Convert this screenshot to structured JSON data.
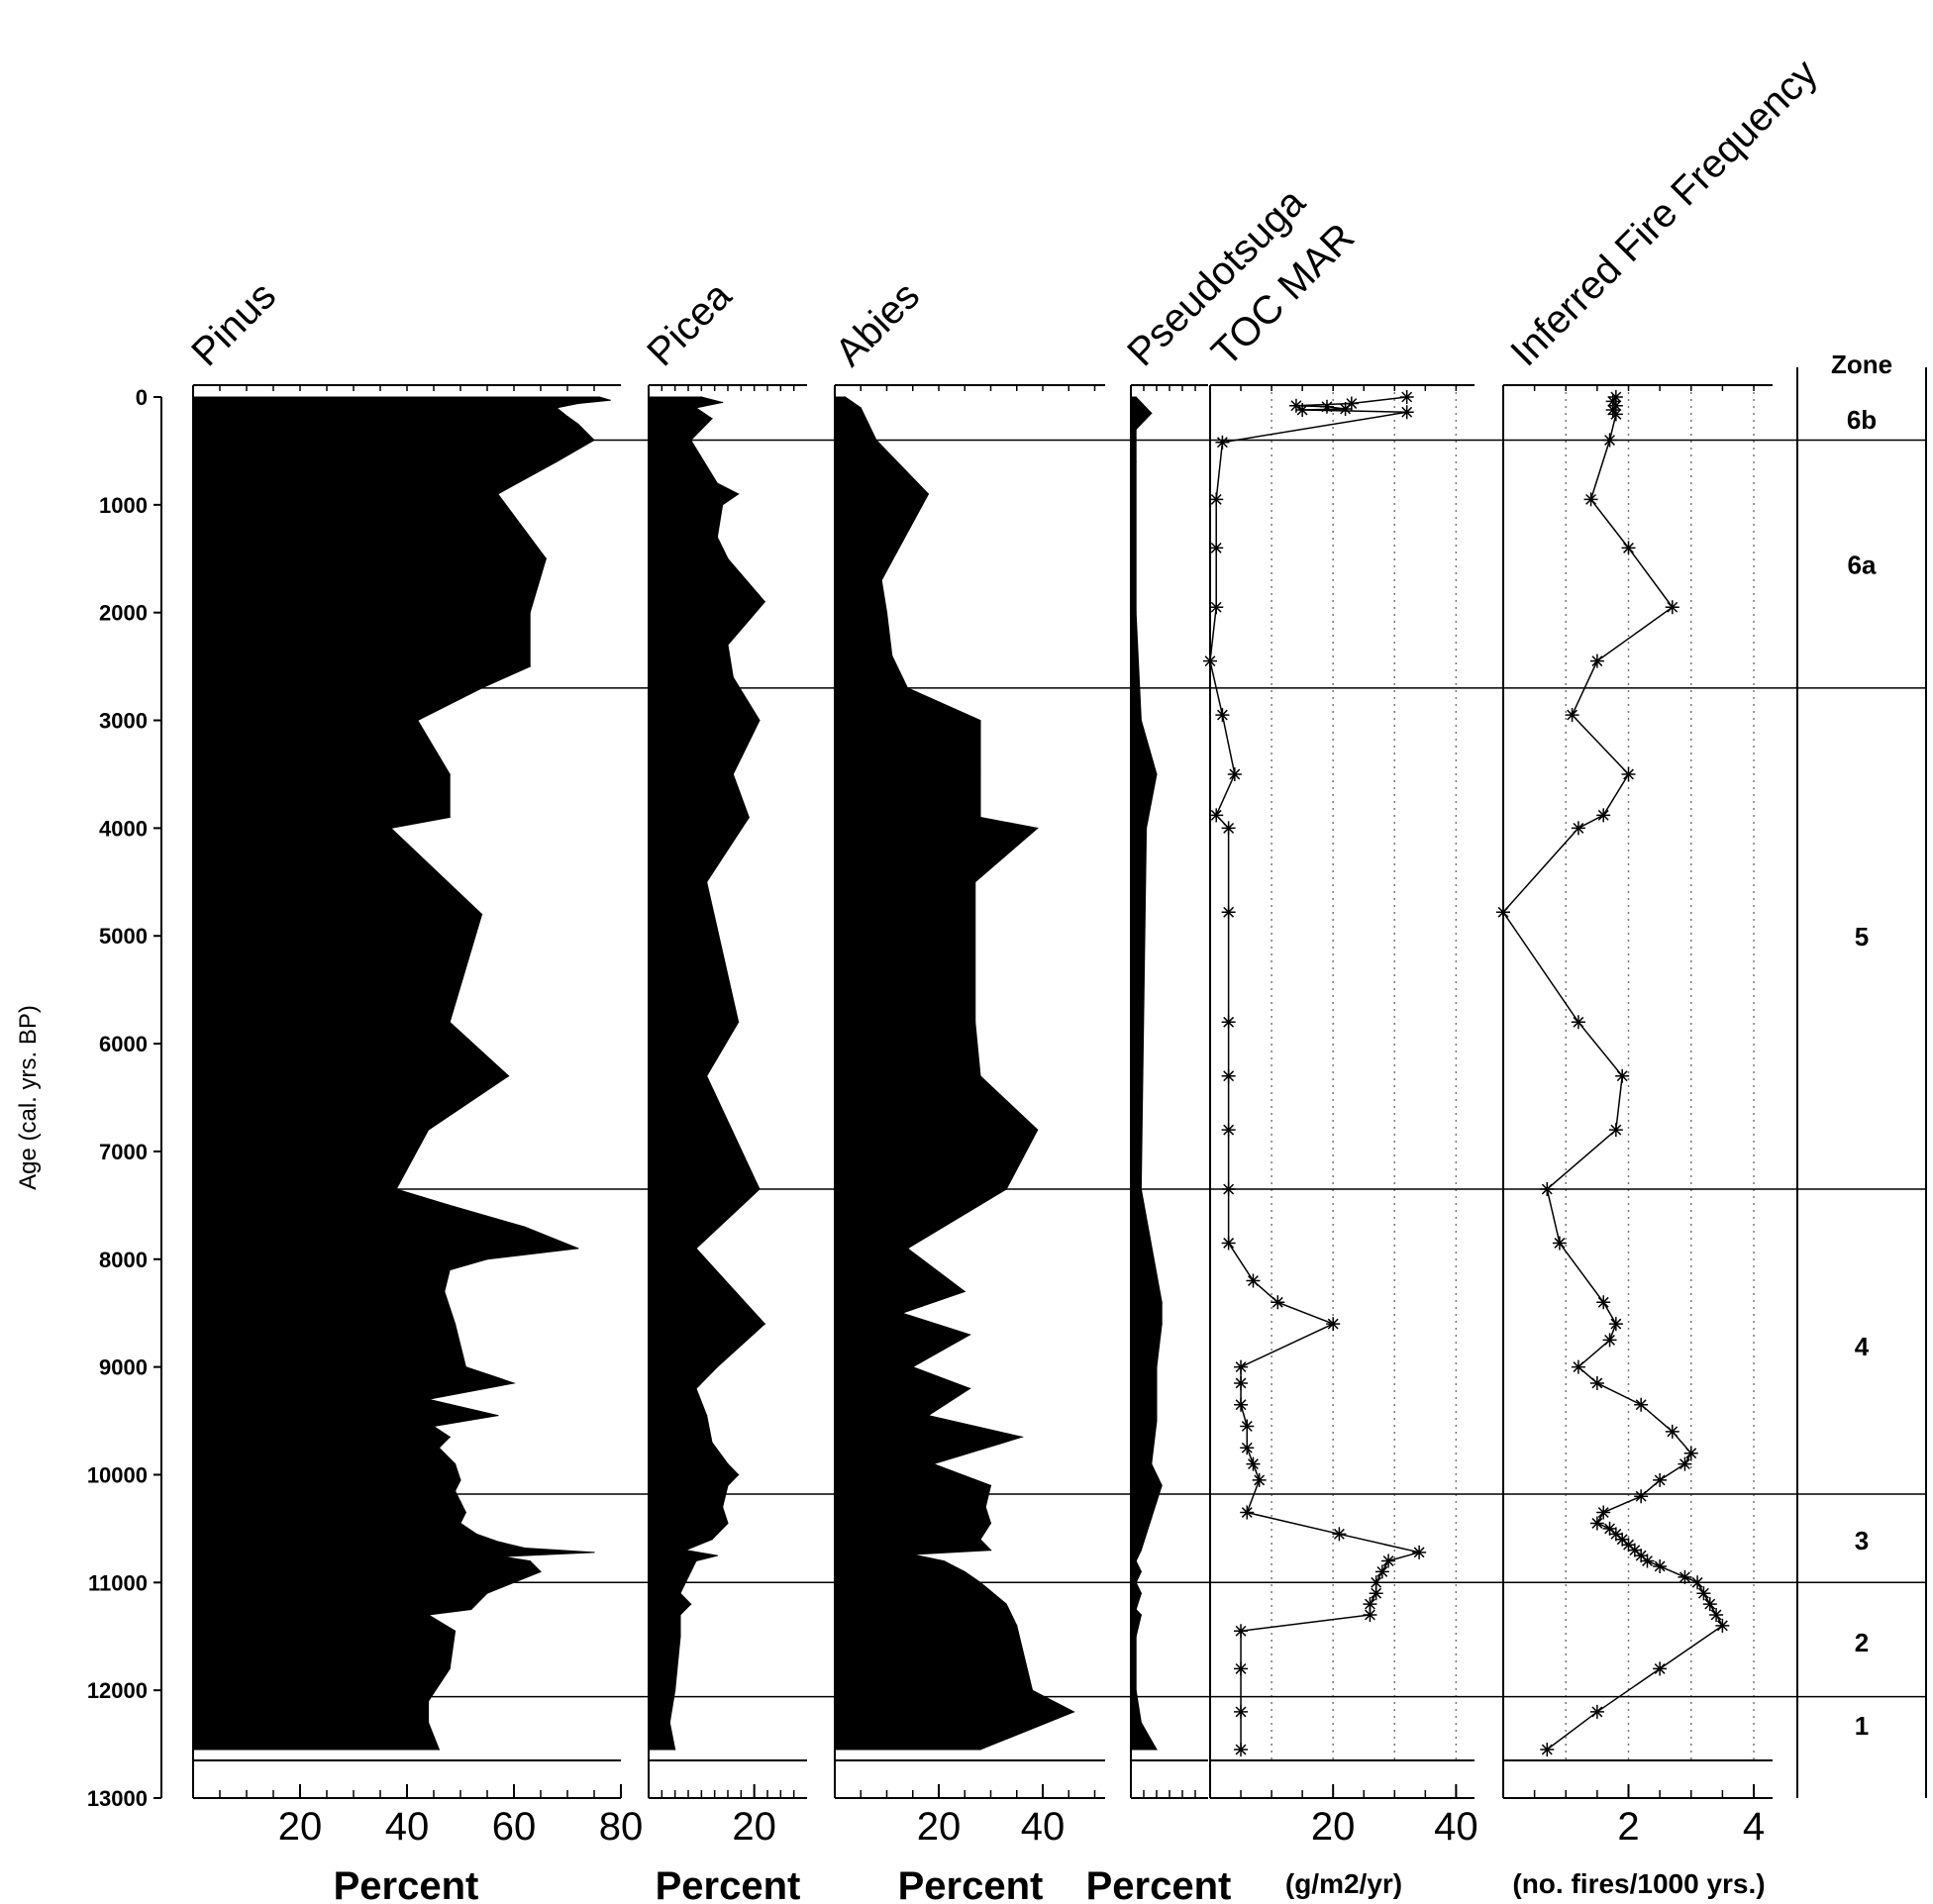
{
  "y_axis": {
    "label": "Age (cal. yrs. BP)",
    "ticks": [
      "0",
      "1000",
      "2000",
      "3000",
      "4000",
      "5000",
      "6000",
      "7000",
      "8000",
      "9000",
      "10000",
      "11000",
      "12000",
      "13000"
    ]
  },
  "zones": {
    "header": "Zone",
    "boundaries": [
      400,
      2700,
      7350,
      10180,
      11000,
      12060
    ],
    "labels": [
      {
        "label": "6b",
        "age": 200
      },
      {
        "label": "6a",
        "age": 1550
      },
      {
        "label": "5",
        "age": 5000
      },
      {
        "label": "4",
        "age": 8800
      },
      {
        "label": "3",
        "age": 10600
      },
      {
        "label": "2",
        "age": 11550
      },
      {
        "label": "1",
        "age": 12320
      }
    ]
  },
  "chart_data": [
    {
      "type": "area",
      "title": "Pinus",
      "xlabel": "Percent",
      "xlim": [
        0,
        80
      ],
      "xtick_labels": [
        "20",
        "40",
        "60",
        "80"
      ],
      "xtick_values": [
        20,
        40,
        60,
        80
      ],
      "depth": [
        0,
        30,
        60,
        100,
        180,
        250,
        400,
        600,
        900,
        1500,
        2000,
        2500,
        2700,
        3000,
        3500,
        3900,
        4000,
        4800,
        5800,
        6300,
        6800,
        7350,
        7500,
        7700,
        7900,
        8000,
        8100,
        8300,
        8600,
        9000,
        9150,
        9300,
        9450,
        9550,
        9650,
        9750,
        9900,
        10050,
        10150,
        10250,
        10350,
        10450,
        10550,
        10620,
        10680,
        10720,
        10760,
        10800,
        10900,
        11000,
        11100,
        11250,
        11300,
        11450,
        11800,
        12100,
        12300,
        12550
      ],
      "values": [
        76,
        78,
        72,
        68,
        70,
        72,
        75,
        68,
        57,
        66,
        63,
        63,
        54,
        42,
        48,
        48,
        37,
        54,
        48,
        59,
        44,
        38,
        48,
        62,
        72,
        55,
        48,
        47,
        49,
        51,
        60,
        44,
        57,
        45,
        48,
        46,
        49,
        50,
        49,
        50,
        51,
        50,
        53,
        57,
        62,
        75,
        58,
        63,
        65,
        60,
        55,
        52,
        44,
        49,
        48,
        44,
        44,
        46
      ]
    },
    {
      "type": "area",
      "title": "Picea",
      "xlabel": "Percent",
      "xlim": [
        0,
        30
      ],
      "xtick_labels": [
        "20"
      ],
      "xtick_values": [
        20
      ],
      "depth": [
        0,
        50,
        100,
        200,
        400,
        800,
        900,
        1000,
        1300,
        1500,
        1900,
        2300,
        2600,
        3000,
        3500,
        3900,
        4500,
        5800,
        6300,
        7350,
        7900,
        8600,
        9000,
        9200,
        9450,
        9700,
        9900,
        10000,
        10100,
        10300,
        10450,
        10600,
        10700,
        10750,
        10800,
        10900,
        11000,
        11100,
        11200,
        11300,
        11500,
        12000,
        12300,
        12550
      ],
      "values": [
        10,
        14,
        9,
        12,
        8,
        13,
        17,
        14,
        13,
        15,
        22,
        15,
        16,
        21,
        16,
        19,
        11,
        17,
        11,
        21,
        9,
        22,
        13,
        9,
        11,
        12,
        15,
        17,
        15,
        14,
        15,
        12,
        7,
        13,
        9,
        8,
        7,
        6,
        8,
        6,
        6,
        5,
        4,
        5
      ]
    },
    {
      "type": "area",
      "title": "Abies",
      "xlabel": "Percent",
      "xlim": [
        0,
        52
      ],
      "xtick_labels": [
        "20",
        "40"
      ],
      "xtick_values": [
        20,
        40
      ],
      "depth": [
        0,
        100,
        400,
        900,
        1700,
        2000,
        2400,
        2700,
        3000,
        3500,
        3900,
        4000,
        4500,
        5800,
        6300,
        6800,
        7350,
        7900,
        8300,
        8500,
        8700,
        9000,
        9200,
        9450,
        9650,
        9900,
        10100,
        10300,
        10450,
        10600,
        10700,
        10740,
        10800,
        10900,
        11000,
        11200,
        11400,
        12000,
        12200,
        12550
      ],
      "values": [
        2,
        5,
        8,
        18,
        9,
        10,
        11,
        14,
        28,
        28,
        28,
        39,
        27,
        27,
        28,
        39,
        33,
        14,
        25,
        13,
        26,
        15,
        26,
        18,
        36,
        19,
        30,
        29,
        30,
        28,
        30,
        15,
        21,
        25,
        28,
        33,
        35,
        38,
        46,
        28
      ]
    },
    {
      "type": "area",
      "title": "Pseudotsuga",
      "xlabel": "Percent",
      "xlim": [
        0,
        15
      ],
      "xtick_labels": [],
      "xtick_values": [],
      "depth": [
        0,
        150,
        300,
        600,
        2000,
        3000,
        3500,
        4000,
        7350,
        8400,
        8600,
        9000,
        9500,
        9900,
        10100,
        10400,
        10700,
        10800,
        10900,
        11000,
        11100,
        11250,
        11300,
        11500,
        12000,
        12300,
        12550
      ],
      "values": [
        1,
        4,
        1,
        1,
        1,
        2,
        5,
        3,
        2,
        6,
        6,
        5,
        5,
        4,
        6,
        4,
        2,
        1,
        2,
        1,
        2,
        1,
        2,
        1,
        1,
        2,
        5
      ]
    },
    {
      "type": "line",
      "title": "TOC MAR",
      "xlabel": "(g/m2/yr)",
      "xlim": [
        0,
        43
      ],
      "xtick_labels": [
        "20",
        "40"
      ],
      "xtick_values": [
        20,
        40
      ],
      "gridlines": [
        10,
        20,
        30,
        40
      ],
      "depth": [
        0,
        60,
        80,
        90,
        110,
        120,
        140,
        420,
        950,
        1400,
        1950,
        2450,
        2950,
        3500,
        3880,
        4000,
        4780,
        5800,
        6300,
        6800,
        7350,
        7850,
        8200,
        8400,
        8600,
        9000,
        9150,
        9350,
        9550,
        9750,
        9900,
        10050,
        10350,
        10550,
        10720,
        10800,
        10900,
        11000,
        11100,
        11200,
        11300,
        11450,
        11800,
        12200,
        12550
      ],
      "values": [
        32,
        23,
        14,
        19,
        22,
        15,
        32,
        2,
        1,
        1,
        1,
        0,
        2,
        4,
        1,
        3,
        3,
        3,
        3,
        3,
        3,
        3,
        7,
        11,
        20,
        5,
        5,
        5,
        6,
        6,
        7,
        8,
        6,
        21,
        34,
        29,
        28,
        27,
        27,
        26,
        26,
        5,
        5,
        5,
        5
      ]
    },
    {
      "type": "line",
      "title": "Inferred Fire Frequency",
      "xlabel": "(no. fires/1000 yrs.)",
      "xlim": [
        0,
        4.3
      ],
      "xtick_labels": [
        "2",
        "4"
      ],
      "xtick_values": [
        2,
        4
      ],
      "gridlines": [
        1,
        2,
        3,
        4
      ],
      "depth": [
        0,
        40,
        80,
        120,
        160,
        400,
        950,
        1400,
        1950,
        2450,
        2950,
        3500,
        3880,
        4000,
        4780,
        5800,
        6300,
        6800,
        7350,
        7850,
        8400,
        8600,
        8750,
        9000,
        9150,
        9350,
        9600,
        9800,
        9900,
        10050,
        10200,
        10350,
        10450,
        10500,
        10550,
        10600,
        10650,
        10700,
        10750,
        10800,
        10850,
        10950,
        11000,
        11100,
        11200,
        11300,
        11400,
        11800,
        12200,
        12550
      ],
      "values": [
        1.8,
        1.75,
        1.8,
        1.75,
        1.8,
        1.7,
        1.4,
        2.0,
        2.7,
        1.5,
        1.1,
        2.0,
        1.6,
        1.2,
        0.0,
        1.2,
        1.9,
        1.8,
        0.7,
        0.9,
        1.6,
        1.8,
        1.7,
        1.2,
        1.5,
        2.2,
        2.7,
        3.0,
        2.9,
        2.5,
        2.2,
        1.6,
        1.5,
        1.7,
        1.8,
        1.9,
        2.0,
        2.1,
        2.2,
        2.3,
        2.5,
        2.9,
        3.1,
        3.2,
        3.3,
        3.4,
        3.5,
        2.5,
        1.5,
        0.7
      ]
    }
  ]
}
